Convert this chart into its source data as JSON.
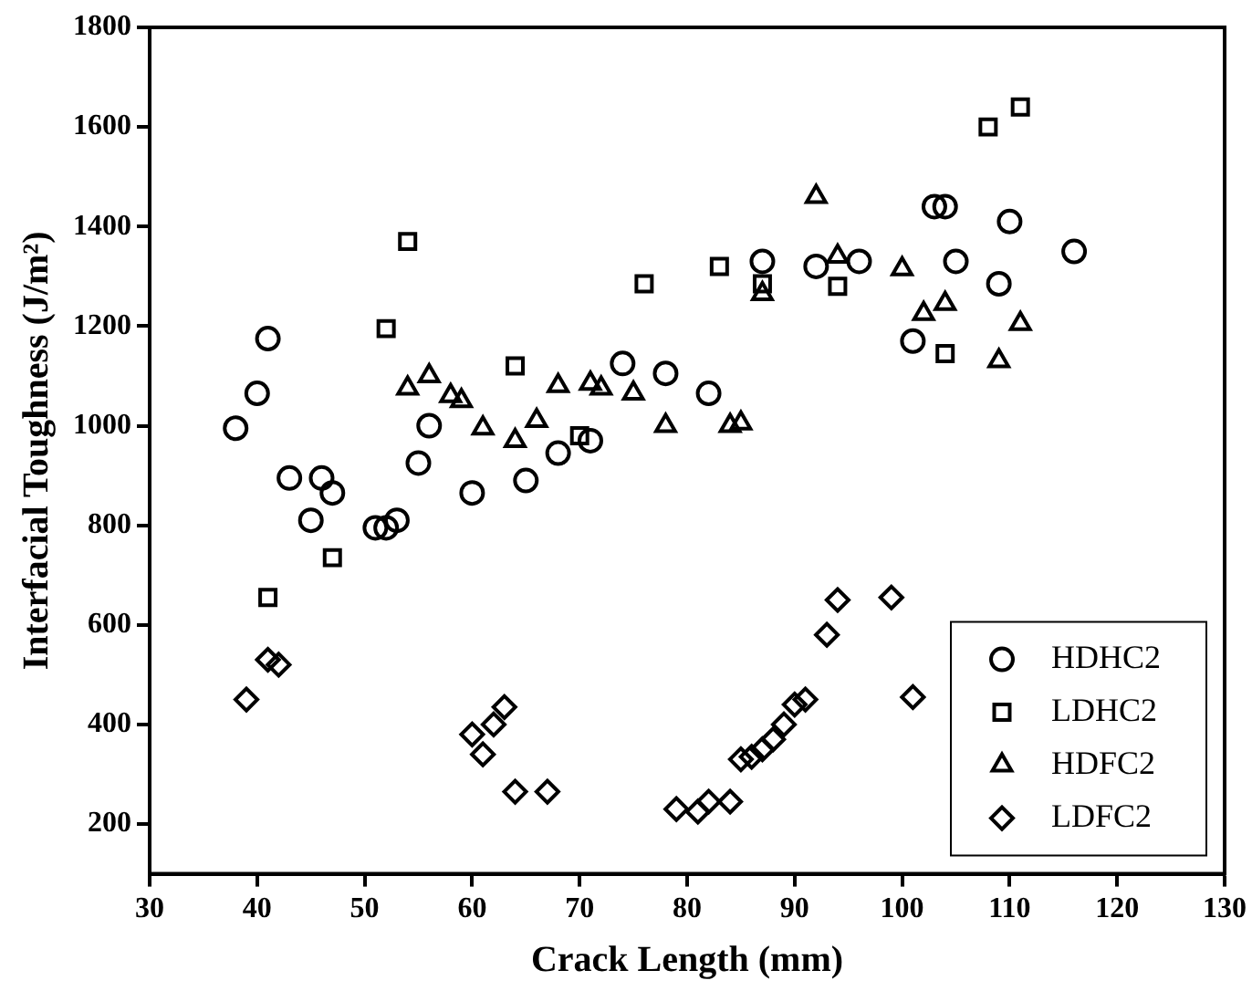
{
  "chart_data": {
    "type": "scatter",
    "xlabel": "Crack Length (mm)",
    "ylabel": "Interfacial Toughness (J/m²)",
    "xlim": [
      30,
      130
    ],
    "xticks": [
      30,
      40,
      50,
      60,
      70,
      80,
      90,
      100,
      110,
      120,
      130
    ],
    "ylim": [
      100,
      1800
    ],
    "yticks": [
      200,
      400,
      600,
      800,
      1000,
      1200,
      1400,
      1600,
      1800
    ],
    "grid": false,
    "legend": "bottom right",
    "series": [
      {
        "name": "HDHC2",
        "color": "#000000",
        "marker": "circle",
        "x": [
          38,
          40,
          41,
          43,
          45,
          46,
          47,
          51,
          52,
          53,
          55,
          56,
          60,
          65,
          68,
          71,
          74,
          78,
          82,
          87,
          92,
          96,
          101,
          103,
          104,
          105,
          109,
          110,
          116
        ],
        "values": [
          995,
          1065,
          1175,
          895,
          810,
          895,
          865,
          795,
          795,
          810,
          925,
          1000,
          865,
          890,
          945,
          970,
          1125,
          1105,
          1065,
          1330,
          1320,
          1330,
          1170,
          1440,
          1440,
          1330,
          1285,
          1410,
          1350
        ]
      },
      {
        "name": "LDHC2",
        "color": "#000000",
        "marker": "square",
        "x": [
          41,
          47,
          52,
          54,
          64,
          70,
          76,
          83,
          87,
          94,
          104,
          108,
          111
        ],
        "values": [
          655,
          735,
          1195,
          1370,
          1120,
          980,
          1285,
          1320,
          1285,
          1280,
          1145,
          1600,
          1640
        ]
      },
      {
        "name": "HDFC2",
        "color": "#000000",
        "marker": "triangle",
        "x": [
          54,
          56,
          58,
          59,
          61,
          64,
          66,
          68,
          71,
          72,
          75,
          78,
          84,
          85,
          87,
          92,
          94,
          100,
          102,
          104,
          109,
          111
        ],
        "values": [
          1075,
          1100,
          1060,
          1050,
          995,
          970,
          1010,
          1080,
          1085,
          1075,
          1065,
          1000,
          1000,
          1005,
          1265,
          1460,
          1340,
          1315,
          1225,
          1245,
          1130,
          1205
        ]
      },
      {
        "name": "LDFC2",
        "color": "#000000",
        "marker": "diamond",
        "x": [
          39,
          41,
          42,
          60,
          61,
          62,
          63,
          64,
          67,
          79,
          81,
          82,
          84,
          85,
          86,
          87,
          88,
          89,
          90,
          91,
          93,
          94,
          99,
          101
        ],
        "values": [
          450,
          530,
          520,
          380,
          340,
          400,
          435,
          265,
          265,
          230,
          225,
          245,
          245,
          330,
          335,
          350,
          370,
          400,
          440,
          450,
          580,
          650,
          655,
          455
        ]
      }
    ]
  }
}
